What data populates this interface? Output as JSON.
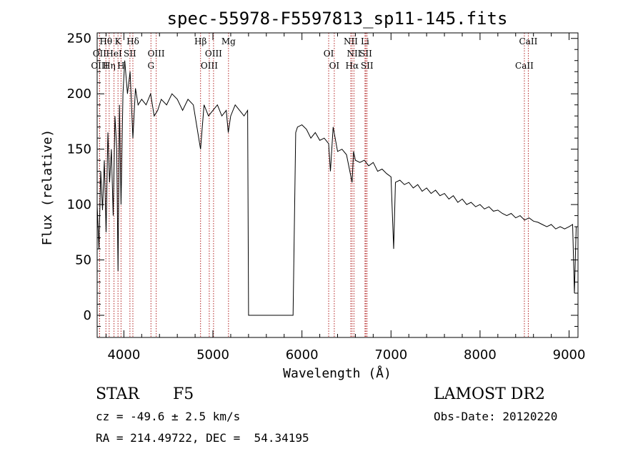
{
  "chart_data": {
    "type": "line",
    "title": "spec-55978-F5597813_sp11-145.fits",
    "xlabel": "Wavelength (Å)",
    "ylabel": "Flux (relative)",
    "xlim": [
      3700,
      9100
    ],
    "ylim": [
      -20,
      255
    ],
    "xticks": [
      4000,
      5000,
      6000,
      7000,
      8000,
      9000
    ],
    "yticks": [
      0,
      50,
      100,
      150,
      200,
      250
    ],
    "grid": false,
    "series": [
      {
        "x": [
          3700,
          3720,
          3740,
          3760,
          3780,
          3800,
          3820,
          3840,
          3860,
          3880,
          3900,
          3920,
          3934,
          3950,
          3968,
          3990,
          4010,
          4040,
          4070,
          4101,
          4130,
          4160,
          4200,
          4250,
          4300,
          4340,
          4380,
          4420,
          4480,
          4540,
          4600,
          4660,
          4720,
          4780,
          4861,
          4900,
          4950,
          5000,
          5050,
          5100,
          5150,
          5172,
          5200,
          5250,
          5300,
          5350,
          5390,
          5400,
          5900,
          5930,
          5950,
          6000,
          6050,
          6100,
          6150,
          6200,
          6250,
          6300,
          6320,
          6350,
          6400,
          6450,
          6500,
          6563,
          6580,
          6600,
          6650,
          6700,
          6750,
          6800,
          6850,
          6900,
          6950,
          7000,
          7030,
          7050,
          7100,
          7150,
          7200,
          7250,
          7300,
          7350,
          7400,
          7450,
          7500,
          7550,
          7600,
          7650,
          7700,
          7750,
          7800,
          7850,
          7900,
          7950,
          8000,
          8050,
          8100,
          8150,
          8200,
          8250,
          8300,
          8350,
          8400,
          8450,
          8500,
          8550,
          8600,
          8650,
          8700,
          8750,
          8800,
          8850,
          8900,
          8950,
          9000,
          9040,
          9060,
          9080
        ],
        "y": [
          100,
          60,
          130,
          95,
          140,
          75,
          165,
          120,
          150,
          90,
          180,
          150,
          40,
          190,
          100,
          200,
          230,
          200,
          220,
          160,
          205,
          190,
          195,
          190,
          200,
          180,
          185,
          195,
          190,
          200,
          195,
          185,
          195,
          190,
          150,
          190,
          180,
          185,
          190,
          180,
          185,
          165,
          180,
          190,
          185,
          180,
          185,
          0,
          0,
          165,
          170,
          172,
          168,
          160,
          165,
          158,
          160,
          155,
          130,
          170,
          148,
          150,
          145,
          120,
          148,
          140,
          138,
          140,
          135,
          138,
          130,
          132,
          128,
          125,
          60,
          120,
          122,
          118,
          120,
          115,
          118,
          112,
          115,
          110,
          113,
          108,
          110,
          105,
          108,
          102,
          105,
          100,
          102,
          98,
          100,
          96,
          98,
          94,
          95,
          92,
          90,
          92,
          88,
          90,
          86,
          88,
          85,
          84,
          82,
          80,
          82,
          78,
          80,
          78,
          80,
          82,
          20,
          80
        ]
      }
    ],
    "spectral_lines": [
      {
        "label": "Hθ",
        "x": 3798,
        "row": 0
      },
      {
        "label": "K",
        "x": 3934,
        "row": 0
      },
      {
        "label": "Hδ",
        "x": 4101,
        "row": 0
      },
      {
        "label": "Hβ",
        "x": 4861,
        "row": 0
      },
      {
        "label": "Mg",
        "x": 5175,
        "row": 0
      },
      {
        "label": "NII",
        "x": 6548,
        "row": 0
      },
      {
        "label": "Li",
        "x": 6708,
        "row": 0
      },
      {
        "label": "CaII",
        "x": 8542,
        "row": 0
      },
      {
        "label": "OII",
        "x": 3727,
        "row": 1
      },
      {
        "label": "HeI",
        "x": 3889,
        "row": 1
      },
      {
        "label": "SII",
        "x": 4068,
        "row": 1
      },
      {
        "label": "OIII",
        "x": 4363,
        "row": 1
      },
      {
        "label": "OIII",
        "x": 5007,
        "row": 1
      },
      {
        "label": "OI",
        "x": 6300,
        "row": 1
      },
      {
        "label": "NII",
        "x": 6584,
        "row": 1
      },
      {
        "label": "SII",
        "x": 6717,
        "row": 1
      },
      {
        "label": "OIII",
        "x": 3727,
        "row": 2
      },
      {
        "label": "Hη",
        "x": 3835,
        "row": 2
      },
      {
        "label": "H",
        "x": 3968,
        "row": 2
      },
      {
        "label": "G",
        "x": 4304,
        "row": 2
      },
      {
        "label": "OIII",
        "x": 4959,
        "row": 2
      },
      {
        "label": "OI",
        "x": 6363,
        "row": 2
      },
      {
        "label": "Hα",
        "x": 6563,
        "row": 2
      },
      {
        "label": "SII",
        "x": 6731,
        "row": 2
      },
      {
        "label": "CaII",
        "x": 8498,
        "row": 2
      }
    ]
  },
  "info": {
    "class": "STAR",
    "subclass": "F5",
    "survey": "LAMOST DR2",
    "cz": "cz = -49.6 ± 2.5 km/s",
    "obs_date": "Obs-Date: 20120220",
    "coords": "RA = 214.49722, DEC =  54.34195"
  }
}
